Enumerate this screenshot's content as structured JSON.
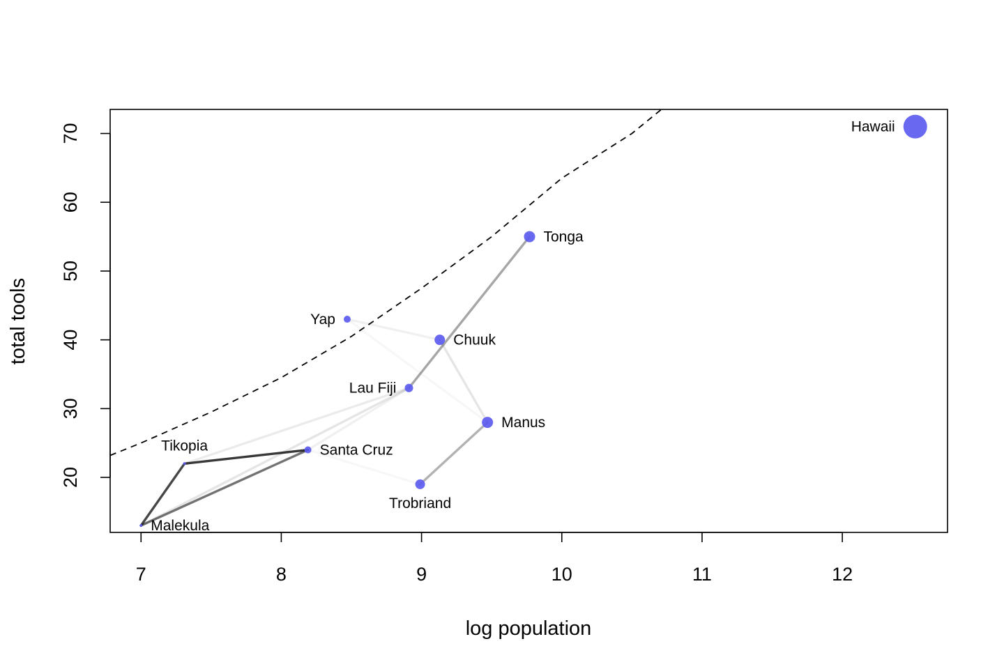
{
  "chart_data": {
    "type": "scatter",
    "title": "",
    "xlabel": "log population",
    "ylabel": "total tools",
    "xlim": [
      6.78,
      12.75
    ],
    "ylim": [
      12,
      73.5
    ],
    "xticks": [
      7,
      8,
      9,
      10,
      11,
      12
    ],
    "yticks": [
      20,
      30,
      40,
      50,
      60,
      70
    ],
    "grid": false,
    "legend": "none",
    "point_color": "#5B5BF0",
    "points": [
      {
        "label": "Malekula",
        "x": 7.0,
        "y": 13,
        "size": 2,
        "label_pos": "right"
      },
      {
        "label": "Tikopia",
        "x": 7.31,
        "y": 22,
        "size": 2,
        "label_pos": "top"
      },
      {
        "label": "Santa Cruz",
        "x": 8.19,
        "y": 24,
        "size": 5,
        "label_pos": "right"
      },
      {
        "label": "Yap",
        "x": 8.47,
        "y": 43,
        "size": 5,
        "label_pos": "left"
      },
      {
        "label": "Lau Fiji",
        "x": 8.91,
        "y": 33,
        "size": 6,
        "label_pos": "left"
      },
      {
        "label": "Trobriand",
        "x": 8.99,
        "y": 19,
        "size": 7,
        "label_pos": "bottom"
      },
      {
        "label": "Chuuk",
        "x": 9.13,
        "y": 40,
        "size": 7.5,
        "label_pos": "right"
      },
      {
        "label": "Manus",
        "x": 9.47,
        "y": 28,
        "size": 8,
        "label_pos": "right"
      },
      {
        "label": "Tonga",
        "x": 9.77,
        "y": 55,
        "size": 8,
        "label_pos": "right"
      },
      {
        "label": "Hawaii",
        "x": 12.52,
        "y": 71,
        "size": 17,
        "label_pos": "left"
      }
    ],
    "links": [
      {
        "from": "Malekula",
        "to": "Tikopia",
        "strength": 0.72
      },
      {
        "from": "Tikopia",
        "to": "Santa Cruz",
        "strength": 0.78
      },
      {
        "from": "Malekula",
        "to": "Santa Cruz",
        "strength": 0.55
      },
      {
        "from": "Malekula",
        "to": "Lau Fiji",
        "strength": 0.1
      },
      {
        "from": "Tikopia",
        "to": "Lau Fiji",
        "strength": 0.08
      },
      {
        "from": "Santa Cruz",
        "to": "Lau Fiji",
        "strength": 0.06
      },
      {
        "from": "Lau Fiji",
        "to": "Tonga",
        "strength": 0.35
      },
      {
        "from": "Trobriand",
        "to": "Manus",
        "strength": 0.3
      },
      {
        "from": "Chuuk",
        "to": "Manus",
        "strength": 0.1
      },
      {
        "from": "Yap",
        "to": "Chuuk",
        "strength": 0.06
      },
      {
        "from": "Yap",
        "to": "Manus",
        "strength": 0.03
      },
      {
        "from": "Santa Cruz",
        "to": "Trobriand",
        "strength": 0.03
      }
    ],
    "trend_line": {
      "style": "dashed",
      "x": [
        6.78,
        7.0,
        7.5,
        8.0,
        8.5,
        9.0,
        9.5,
        10.0,
        10.5,
        10.8
      ],
      "y": [
        23.2,
        25.0,
        29.5,
        34.5,
        40.5,
        47.5,
        55.0,
        63.5,
        70.0,
        75.0
      ]
    }
  }
}
